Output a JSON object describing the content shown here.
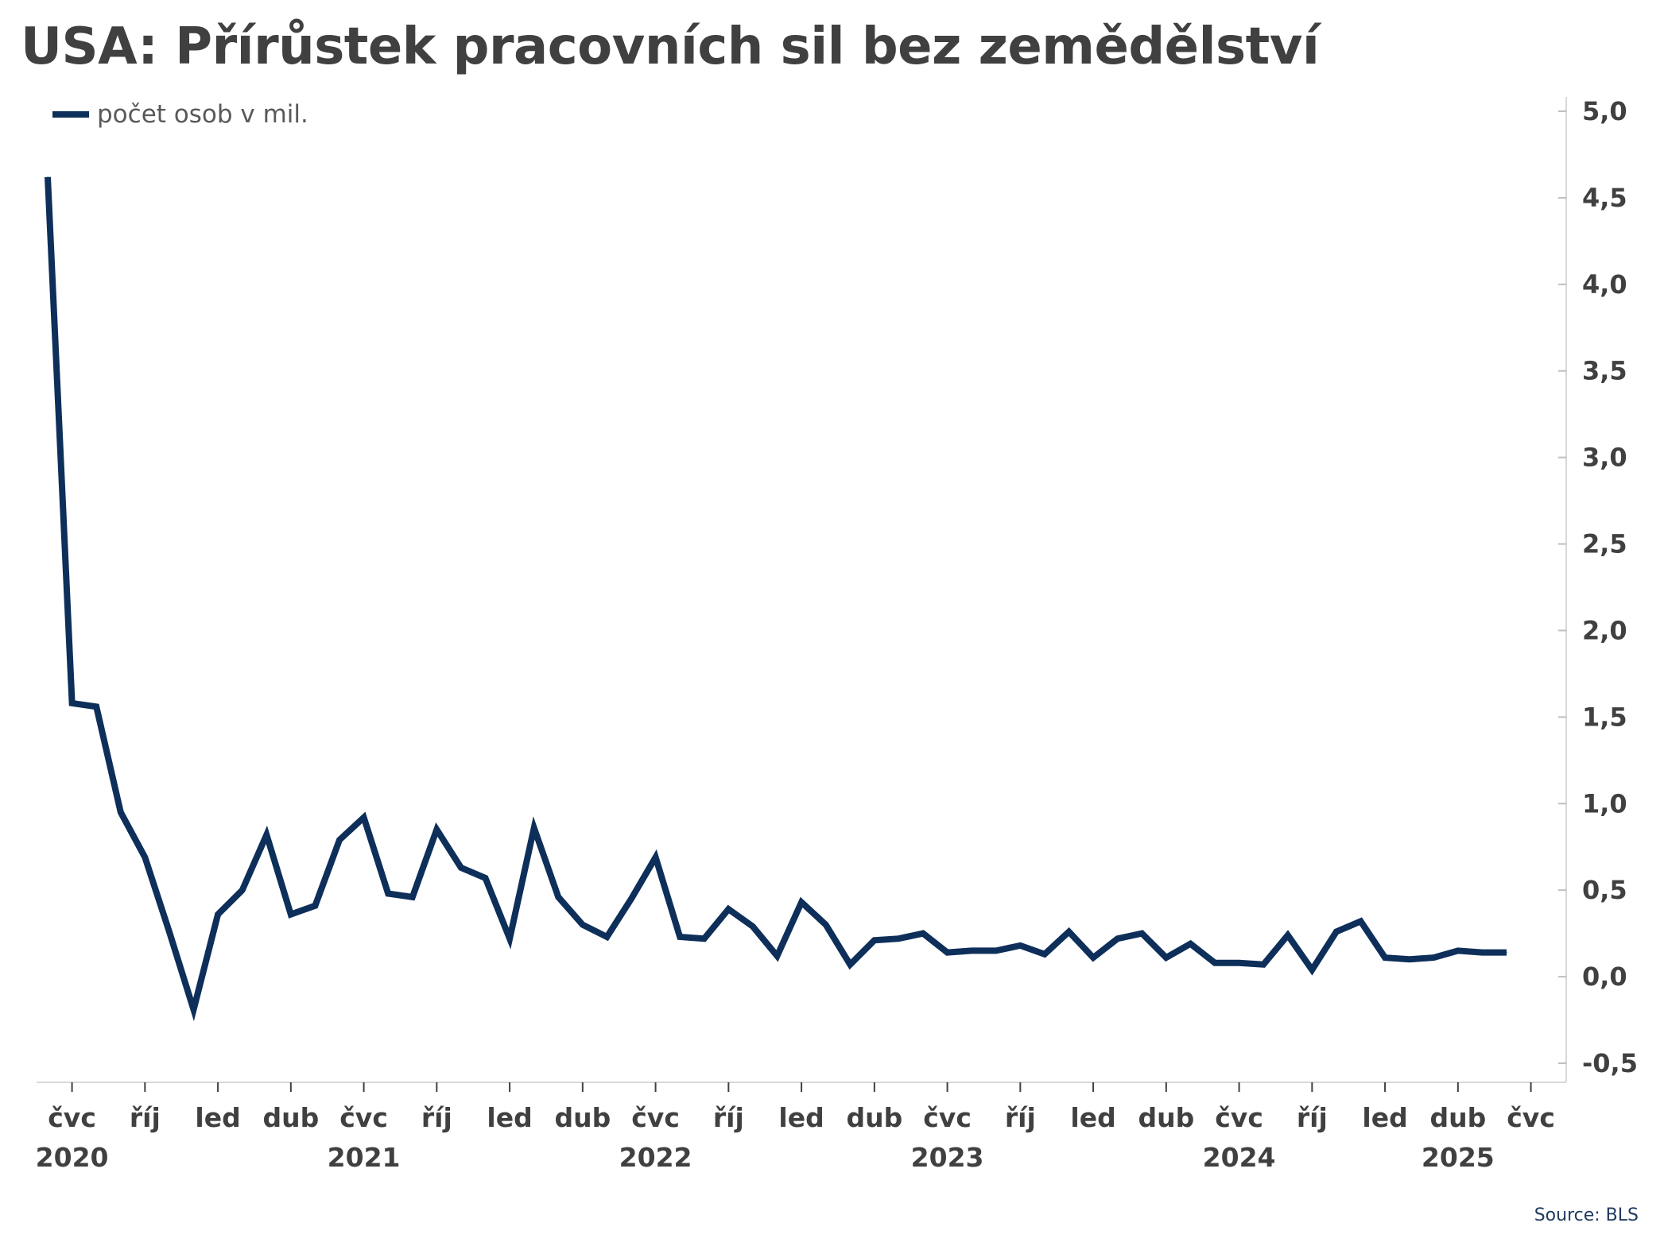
{
  "title": "USA: Přírůstek pracovních sil bez zemědělství",
  "source": "Source: BLS",
  "colors": {
    "line": "#0d2f5a",
    "axis": "#d9d9d9",
    "text": "#404040"
  },
  "chart_data": {
    "type": "line",
    "title": "USA: Přírůstek pracovních sil bez zemědělství",
    "y_axis_position": "right",
    "legend_position": "top-left",
    "grid": false,
    "ylim": [
      -0.5,
      5.0
    ],
    "yticks": [
      -0.5,
      0.0,
      0.5,
      1.0,
      1.5,
      2.0,
      2.5,
      3.0,
      3.5,
      4.0,
      4.5,
      5.0
    ],
    "ytick_labels": [
      "-0,5",
      "0,0",
      "0,5",
      "1,0",
      "1,5",
      "2,0",
      "2,5",
      "3,0",
      "3,5",
      "4,0",
      "4,5",
      "5,0"
    ],
    "x_start": "2020-06",
    "x_end": "2025-06",
    "xticks": [
      {
        "month": "2020-07",
        "label": "čvc",
        "year": "2020"
      },
      {
        "month": "2020-10",
        "label": "říj",
        "year": ""
      },
      {
        "month": "2021-01",
        "label": "led",
        "year": ""
      },
      {
        "month": "2021-04",
        "label": "dub",
        "year": ""
      },
      {
        "month": "2021-07",
        "label": "čvc",
        "year": "2021"
      },
      {
        "month": "2021-10",
        "label": "říj",
        "year": ""
      },
      {
        "month": "2022-01",
        "label": "led",
        "year": ""
      },
      {
        "month": "2022-04",
        "label": "dub",
        "year": ""
      },
      {
        "month": "2022-07",
        "label": "čvc",
        "year": "2022"
      },
      {
        "month": "2022-10",
        "label": "říj",
        "year": ""
      },
      {
        "month": "2023-01",
        "label": "led",
        "year": ""
      },
      {
        "month": "2023-04",
        "label": "dub",
        "year": ""
      },
      {
        "month": "2023-07",
        "label": "čvc",
        "year": "2023"
      },
      {
        "month": "2023-10",
        "label": "říj",
        "year": ""
      },
      {
        "month": "2024-01",
        "label": "led",
        "year": ""
      },
      {
        "month": "2024-04",
        "label": "dub",
        "year": ""
      },
      {
        "month": "2024-07",
        "label": "čvc",
        "year": "2024"
      },
      {
        "month": "2024-10",
        "label": "říj",
        "year": ""
      },
      {
        "month": "2025-01",
        "label": "led",
        "year": ""
      },
      {
        "month": "2025-04",
        "label": "dub",
        "year": "2025"
      },
      {
        "month": "2025-07",
        "label": "čvc",
        "year": ""
      }
    ],
    "series": [
      {
        "name": "počet osob v mil.",
        "x": [
          "2020-06",
          "2020-07",
          "2020-08",
          "2020-09",
          "2020-10",
          "2020-11",
          "2020-12",
          "2021-01",
          "2021-02",
          "2021-03",
          "2021-04",
          "2021-05",
          "2021-06",
          "2021-07",
          "2021-08",
          "2021-09",
          "2021-10",
          "2021-11",
          "2021-12",
          "2022-01",
          "2022-02",
          "2022-03",
          "2022-04",
          "2022-05",
          "2022-06",
          "2022-07",
          "2022-08",
          "2022-09",
          "2022-10",
          "2022-11",
          "2022-12",
          "2023-01",
          "2023-02",
          "2023-03",
          "2023-04",
          "2023-05",
          "2023-06",
          "2023-07",
          "2023-08",
          "2023-09",
          "2023-10",
          "2023-11",
          "2023-12",
          "2024-01",
          "2024-02",
          "2024-03",
          "2024-04",
          "2024-05",
          "2024-06",
          "2024-07",
          "2024-08",
          "2024-09",
          "2024-10",
          "2024-11",
          "2024-12",
          "2025-01",
          "2025-02",
          "2025-03",
          "2025-04",
          "2025-05",
          "2025-06"
        ],
        "values": [
          4.62,
          1.58,
          1.56,
          0.95,
          0.69,
          0.26,
          -0.19,
          0.36,
          0.5,
          0.82,
          0.36,
          0.41,
          0.79,
          0.92,
          0.48,
          0.46,
          0.85,
          0.63,
          0.57,
          0.22,
          0.86,
          0.46,
          0.3,
          0.23,
          0.45,
          0.69,
          0.23,
          0.22,
          0.39,
          0.29,
          0.12,
          0.43,
          0.3,
          0.07,
          0.21,
          0.22,
          0.25,
          0.14,
          0.15,
          0.15,
          0.18,
          0.13,
          0.26,
          0.11,
          0.22,
          0.25,
          0.11,
          0.19,
          0.08,
          0.08,
          0.07,
          0.24,
          0.04,
          0.26,
          0.32,
          0.11,
          0.1,
          0.11,
          0.15,
          0.14,
          0.14
        ]
      }
    ]
  }
}
